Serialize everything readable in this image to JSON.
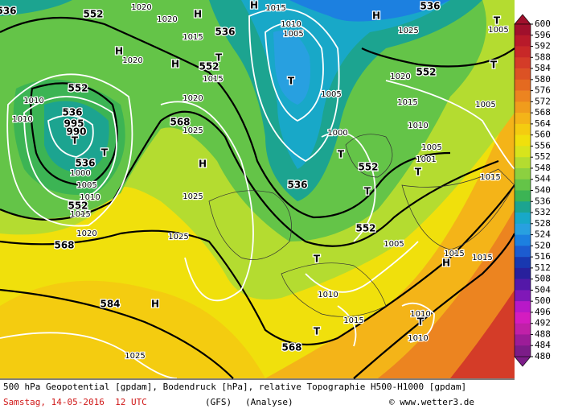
{
  "map": {
    "labels": [
      "552",
      "536",
      "552",
      "536",
      "995",
      "990",
      "T",
      "T",
      "536",
      "1000",
      "1005",
      "1010",
      "552",
      "1015",
      "1020",
      "568",
      "568",
      "H",
      "1025",
      "1025",
      "584",
      "H",
      "1025",
      "568",
      "T",
      "1015",
      "T",
      "1010",
      "1005",
      "552",
      "T",
      "536",
      "552",
      "T",
      "1001",
      "1005",
      "T",
      "1000",
      "1005",
      "T",
      "1010",
      "1005",
      "H",
      "1015",
      "1020",
      "552",
      "1015",
      "1010",
      "H",
      "1025",
      "T",
      "1005",
      "T",
      "1005",
      "1015",
      "H",
      "1015",
      "1015",
      "T",
      "1010",
      "1010",
      "H",
      "1020",
      "1020",
      "1015",
      "536",
      "552",
      "T",
      "1015",
      "H",
      "1020",
      "H",
      "1020",
      "1025",
      "1010",
      "1010",
      "536"
    ]
  },
  "legend": {
    "labels": [
      600,
      596,
      592,
      588,
      584,
      580,
      576,
      572,
      568,
      564,
      560,
      556,
      552,
      548,
      544,
      540,
      536,
      532,
      528,
      524,
      520,
      516,
      512,
      508,
      504,
      500,
      496,
      492,
      488,
      484,
      480
    ],
    "colors": [
      "#a0102c",
      "#b81a2a",
      "#c82828",
      "#d43c28",
      "#dc5224",
      "#e46a20",
      "#ec8420",
      "#f09c1c",
      "#f4b418",
      "#f4cc10",
      "#f0e00c",
      "#d8e41c",
      "#b4dc30",
      "#8cd040",
      "#64c448",
      "#3cb454",
      "#1ca490",
      "#18a8c8",
      "#28a0e0",
      "#1c80e0",
      "#1c5cd0",
      "#1838b0",
      "#28209c",
      "#5418a8",
      "#8018b8",
      "#b818c8",
      "#d41cc0",
      "#c020a8",
      "#9c1c98",
      "#7c1c88"
    ]
  },
  "footer": {
    "line1": "500 hPa Geopotential [gpdam], Bodendruck [hPa], relative Topographie H500-H1000 [gpdam]",
    "date": "Samstag, 14-05-2016  12 UTC",
    "model": "(GFS)",
    "run": "(Analyse)",
    "credit": "© www.wetter3.de"
  }
}
